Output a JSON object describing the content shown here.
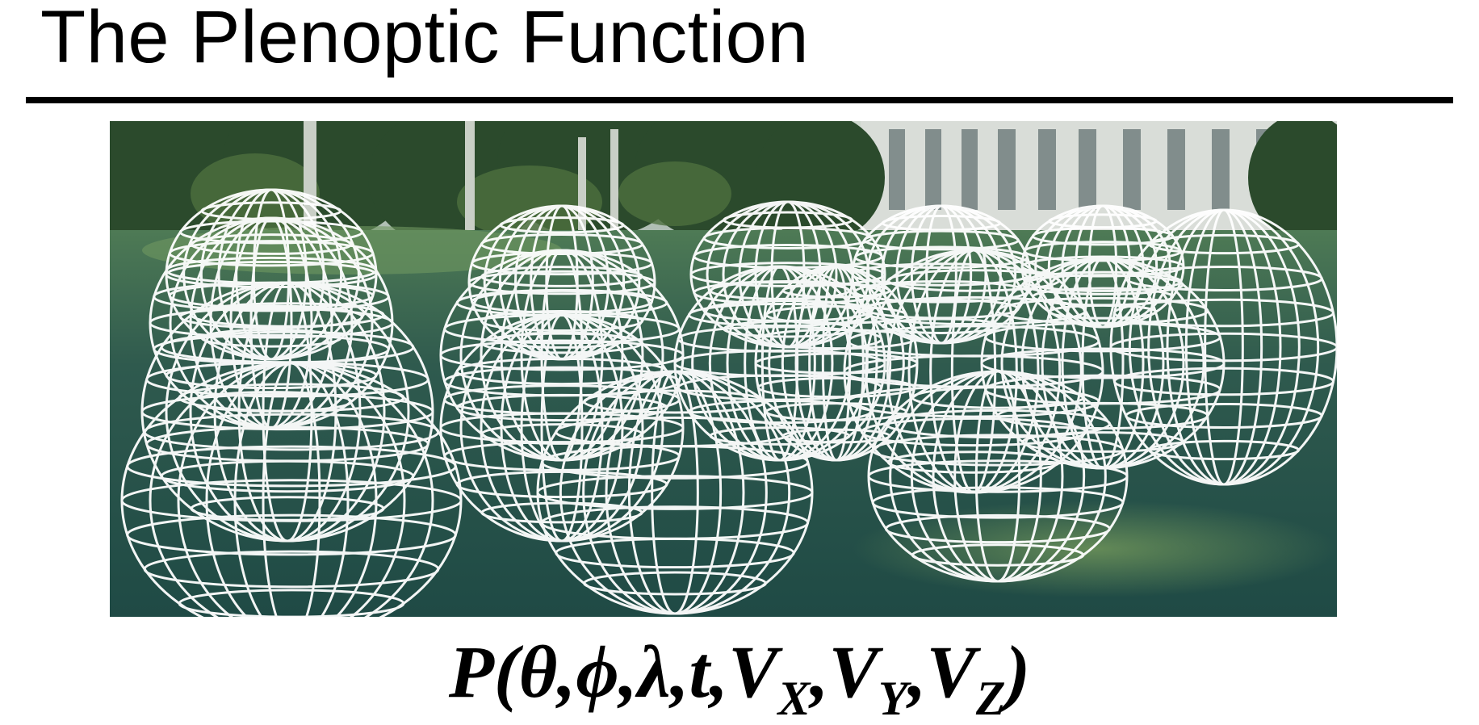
{
  "slide": {
    "title": "The Plenoptic Function"
  },
  "image": {
    "icon": "wireframe-spheres-park-photo"
  },
  "formula": {
    "fn": "P(",
    "args": "θ,ϕ,λ,t,",
    "v": "V",
    "sep": ",",
    "sub_x": "X",
    "sub_y": "Y",
    "sub_z": "Z",
    "close": ")"
  }
}
